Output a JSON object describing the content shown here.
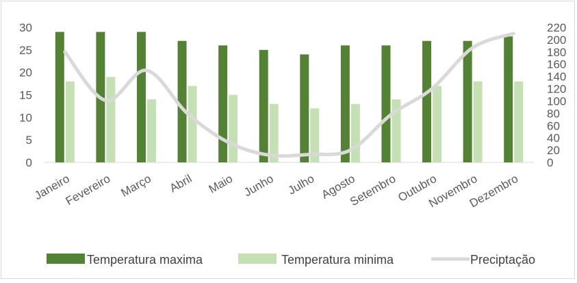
{
  "chart_data": {
    "type": "bar",
    "categories": [
      "Janeiro",
      "Fevereiro",
      "Março",
      "Abril",
      "Maio",
      "Junho",
      "Julho",
      "Agosto",
      "Setembro",
      "Outubro",
      "Novembro",
      "Dezembro"
    ],
    "series": [
      {
        "name": "Temperatura maxima",
        "type": "bar",
        "axis": "left",
        "color": "#548235",
        "values": [
          29,
          29,
          29,
          27,
          26,
          25,
          24,
          26,
          26,
          27,
          27,
          28
        ]
      },
      {
        "name": "Temperatura minima",
        "type": "bar",
        "axis": "left",
        "color": "#c5e0b4",
        "values": [
          18,
          19,
          14,
          17,
          15,
          13,
          12,
          13,
          14,
          17,
          18,
          18
        ]
      },
      {
        "name": "Preciptação",
        "type": "line",
        "axis": "right",
        "color": "#d9d9d9",
        "values": [
          180,
          101,
          150,
          80,
          33,
          12,
          13,
          20,
          78,
          120,
          187,
          210
        ]
      }
    ],
    "y_left": {
      "min": 0,
      "max": 30,
      "ticks": [
        0,
        5,
        10,
        15,
        20,
        25,
        30
      ]
    },
    "y_right": {
      "min": 0,
      "max": 220,
      "ticks": [
        0,
        20,
        40,
        60,
        80,
        100,
        120,
        140,
        160,
        180,
        200,
        220
      ]
    },
    "legend_position": "bottom",
    "grid": false
  }
}
